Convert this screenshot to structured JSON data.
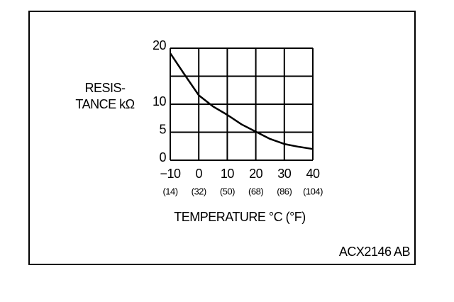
{
  "chart_data": {
    "type": "line",
    "y_label": [
      "RESIS-",
      "TANCE kΩ"
    ],
    "x_label": "TEMPERATURE °C (°F)",
    "annotation": "ACX2146 AB",
    "x": [
      -10,
      -5,
      0,
      5,
      10,
      15,
      20,
      25,
      30,
      35,
      40
    ],
    "series": [
      {
        "color": "#000000",
        "values": [
          19.1,
          15.3,
          11.6,
          9.6,
          8.1,
          6.4,
          5.1,
          3.8,
          2.9,
          2.4,
          2.0
        ]
      }
    ],
    "xlim": [
      -10,
      40
    ],
    "xticks": [
      {
        "value": -10,
        "label": "−10"
      },
      0,
      10,
      20,
      30,
      40
    ],
    "xtick_labels_f": [
      "(14)",
      "(32)",
      "(50)",
      "(68)",
      "(86)",
      "(104)"
    ],
    "ylim": [
      0,
      20
    ],
    "yticks": [
      0,
      5,
      10,
      20
    ],
    "y_gridlines": [
      0,
      5,
      10,
      15,
      20
    ],
    "grid": true
  }
}
